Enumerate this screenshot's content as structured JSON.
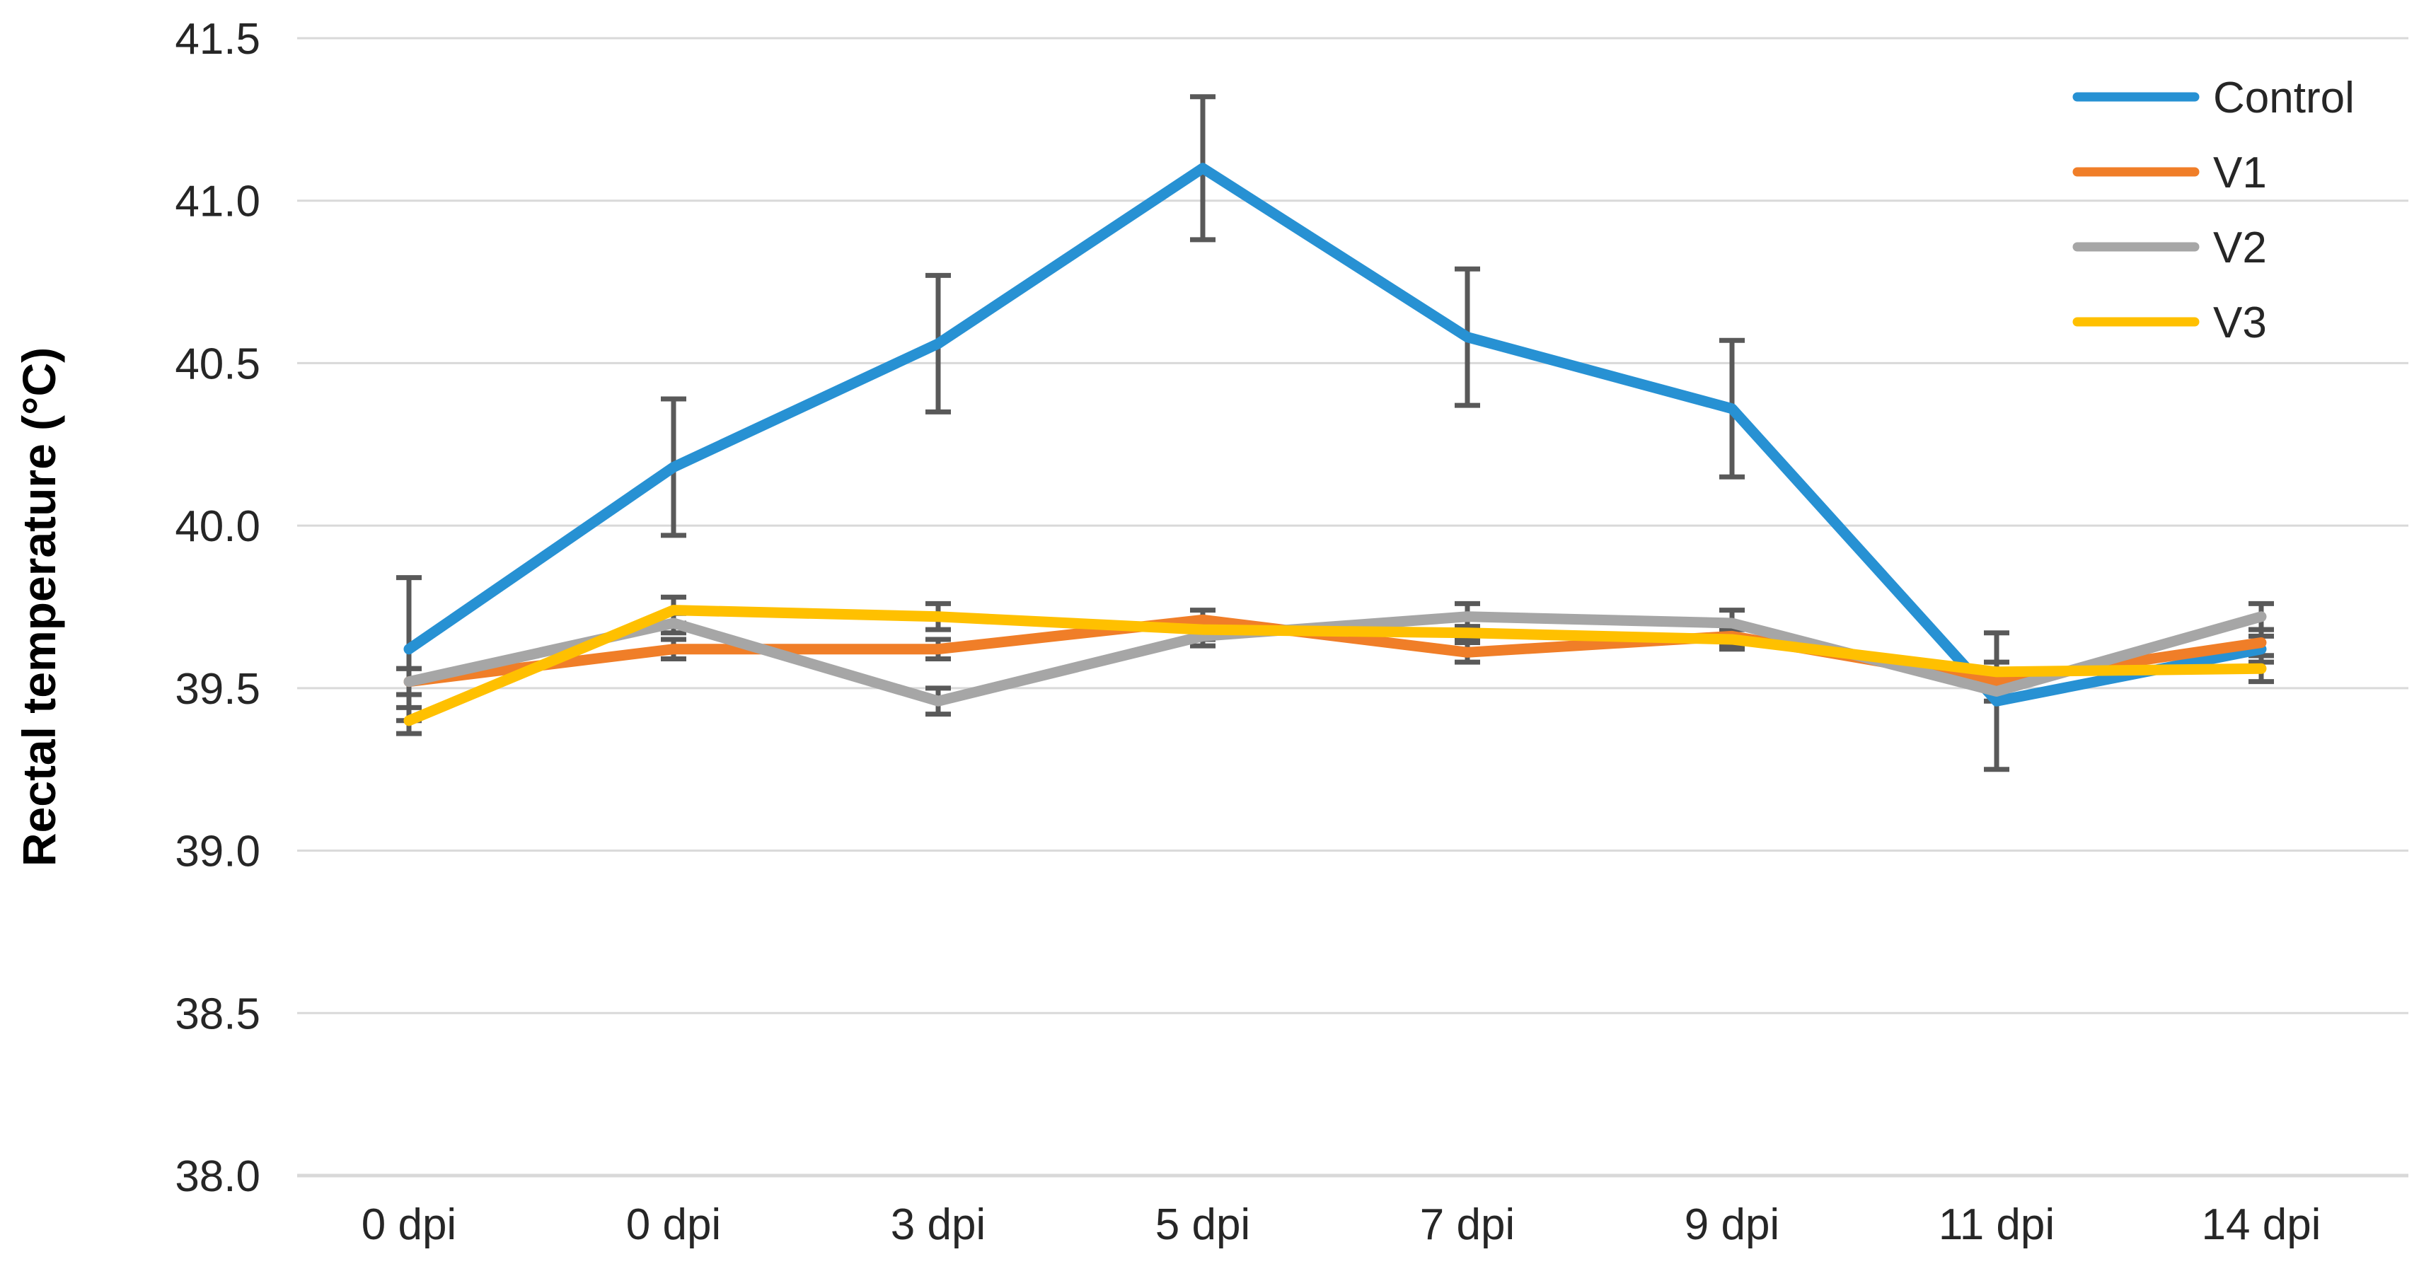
{
  "figure": {
    "background": "#FFFFFF",
    "text_color": "#262626"
  },
  "chart_data": {
    "type": "line",
    "title": "",
    "xlabel": "",
    "ylabel": "Rectal temperature (°C)",
    "categories": [
      "0 dpi",
      "0 dpi",
      "3 dpi",
      "5 dpi",
      "7 dpi",
      "9 dpi",
      "11 dpi",
      "14 dpi"
    ],
    "series": [
      {
        "name": "Control",
        "color": "#2791D3",
        "values": [
          39.62,
          40.18,
          40.56,
          41.1,
          40.58,
          40.36,
          39.46,
          39.62
        ],
        "errors": [
          0.22,
          0.21,
          0.21,
          0.22,
          0.21,
          0.21,
          0.21,
          0.04
        ]
      },
      {
        "name": "V1",
        "color": "#F07E28",
        "values": [
          39.52,
          39.62,
          39.62,
          39.71,
          39.61,
          39.66,
          39.52,
          39.64
        ],
        "errors": [
          0.04,
          0.03,
          0.03,
          0.03,
          0.03,
          0.03,
          0.03,
          0.04
        ]
      },
      {
        "name": "V2",
        "color": "#A6A6A6",
        "values": [
          39.52,
          39.7,
          39.46,
          39.66,
          39.72,
          39.7,
          39.49,
          39.72
        ],
        "errors": [
          0.04,
          0.03,
          0.04,
          0.03,
          0.04,
          0.04,
          0.03,
          0.04
        ]
      },
      {
        "name": "V3",
        "color": "#FFC000",
        "values": [
          39.4,
          39.74,
          39.72,
          39.68,
          39.67,
          39.65,
          39.55,
          39.56
        ],
        "errors": [
          0.04,
          0.04,
          0.04,
          0.03,
          0.02,
          0.03,
          0.03,
          0.04
        ]
      }
    ],
    "ylim": [
      38.0,
      41.5
    ],
    "yticks": [
      38.0,
      38.5,
      39.0,
      39.5,
      40.0,
      40.5,
      41.0,
      41.5
    ],
    "ytick_labels": [
      "38.0",
      "38.5",
      "39.0",
      "39.5",
      "40.0",
      "40.5",
      "41.0",
      "41.5"
    ],
    "grid": "horizontal-only",
    "legend_position": "top-right",
    "legend_labels": [
      "Control",
      "V1",
      "V2",
      "V3"
    ],
    "gridline_color": "#D9D9D9",
    "error_bar_color": "#595959"
  }
}
